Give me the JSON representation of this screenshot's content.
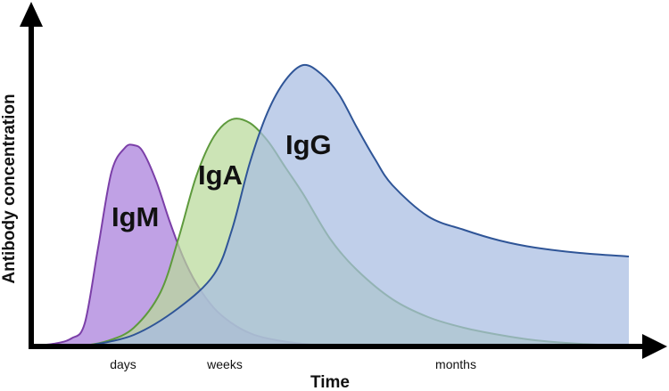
{
  "chart_data": {
    "type": "area",
    "xlabel": "Time",
    "ylabel": "Antibody concentration",
    "x_ticks": [
      "days",
      "weeks",
      "months"
    ],
    "series": [
      {
        "name": "IgM",
        "fill": "#a87ddb",
        "stroke": "#7b3fa8",
        "x": [
          40,
          60,
          80,
          95,
          110,
          125,
          140,
          150,
          160,
          175,
          190,
          205,
          220,
          240,
          260,
          280,
          300,
          330,
          360
        ],
        "y": [
          0,
          2,
          8,
          25,
          110,
          195,
          222,
          225,
          218,
          185,
          140,
          100,
          70,
          42,
          25,
          14,
          8,
          3,
          0
        ]
      },
      {
        "name": "IgA",
        "fill": "#b8d99a",
        "stroke": "#5e9a3d",
        "x": [
          95,
          120,
          150,
          180,
          200,
          220,
          240,
          260,
          280,
          300,
          320,
          340,
          370,
          400,
          440,
          480,
          520,
          560,
          600,
          650,
          700
        ],
        "y": [
          0,
          5,
          20,
          60,
          120,
          190,
          235,
          254,
          250,
          230,
          200,
          170,
          120,
          85,
          52,
          32,
          20,
          12,
          6,
          2,
          0
        ]
      },
      {
        "name": "IgG",
        "fill": "#a7bde2",
        "stroke": "#2f5597",
        "x": [
          100,
          150,
          200,
          240,
          260,
          280,
          300,
          320,
          340,
          360,
          380,
          400,
          420,
          440,
          480,
          520,
          560,
          600,
          650,
          705
        ],
        "y": [
          0,
          12,
          42,
          80,
          130,
          205,
          262,
          298,
          315,
          305,
          282,
          245,
          210,
          180,
          145,
          130,
          118,
          110,
          104,
          100
        ]
      }
    ]
  }
}
